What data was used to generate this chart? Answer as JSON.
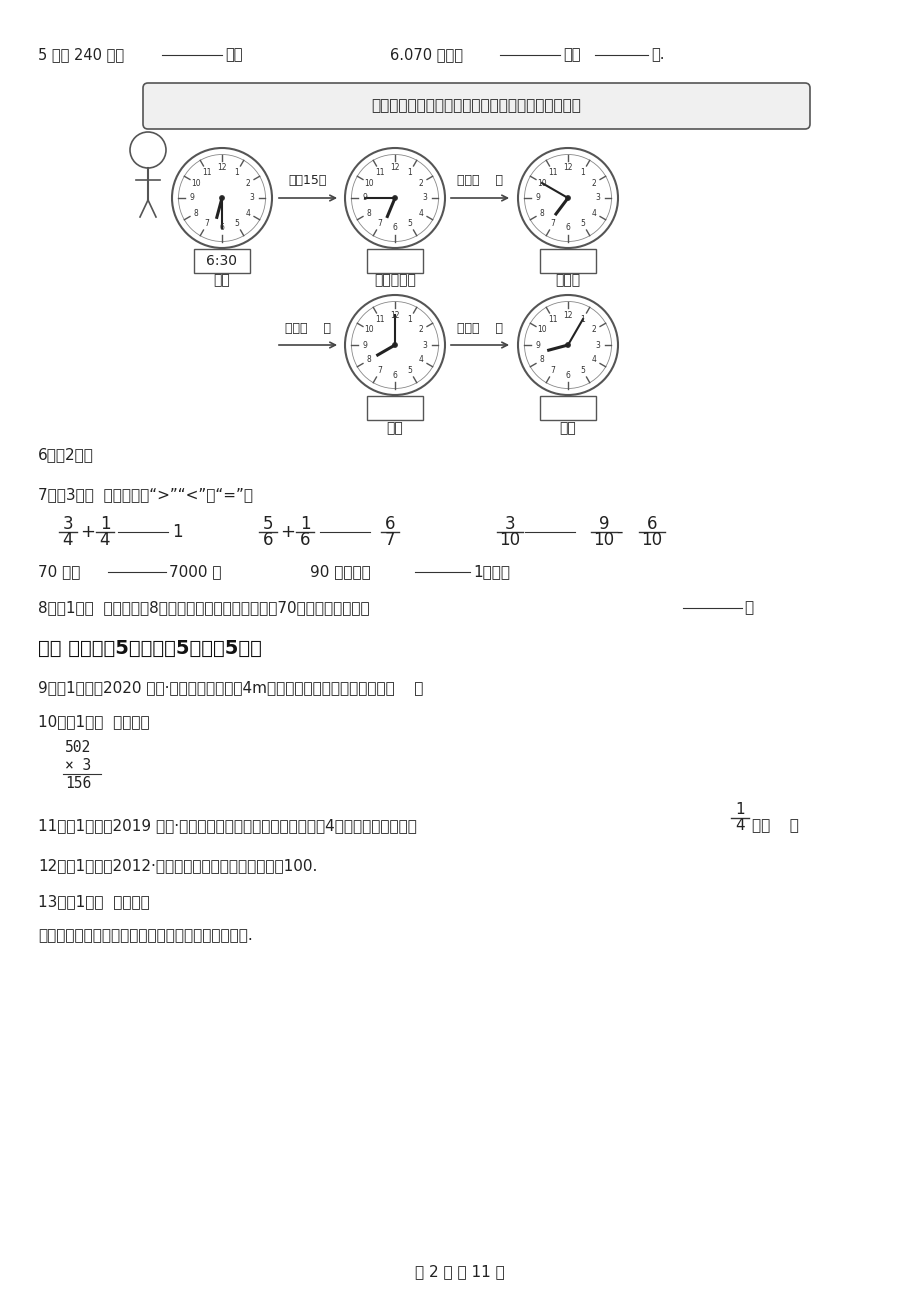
{
  "bg_color": "#ffffff",
  "line1_a": "5 千米 240 米＝",
  "line1_b": "千米",
  "line1b_a": "6.070 千克＝",
  "line1b_b": "千克",
  "line1b_c": "克.",
  "banner_text": "这是我每一天早上，到校之前做的事情，请填一填。",
  "label_qichuang": "起床",
  "label_shuaya": "刷牙、洗脸",
  "label_chizaofan": "吃早饭",
  "label_shangxue": "上学",
  "label_daoxiao": "到校",
  "time_630": "6:30",
  "arrow1_label": "经过15分",
  "arrow2_label": "经过（    ）",
  "arrow3_label": "经过（    ）",
  "arrow4_label": "经过（    ）",
  "q6": "6．（2分）",
  "q7": "7．（3分）  在横线上填“>”“<”或“=”。",
  "frac1_n1": "3",
  "frac1_d1": "4",
  "frac1_n2": "1",
  "frac1_d2": "4",
  "frac1_rhs": "1",
  "frac2_n1": "5",
  "frac2_d1": "6",
  "frac2_n2": "1",
  "frac2_d2": "6",
  "frac2_n3": "6",
  "frac2_d3": "7",
  "frac3_n1": "3",
  "frac3_d1": "10",
  "frac3_n2": "9",
  "frac3_d2": "10",
  "frac3_n3": "6",
  "frac3_d3": "10",
  "plus": "+",
  "minus": "-",
  "weight_a": "70 千克",
  "weight_b": "7000 克",
  "area_a": "90 平方厘米",
  "area_b": "1平方米",
  "q8": "8．（1分）  一个边长为8米的正方形锤板，每平方米重70千克，这块锤板重",
  "q8_end": "。",
  "section2_header": "二、 判断（兲5分）（兲5题；兲5分）",
  "q9": "9．（1分）（2020 五上·曲靖期末）边长为4m的正方形，周长与面积相等。（    ）",
  "q10": "10．（1分）  判断对错",
  "calc_line1": "502",
  "calc_line2": "× 3",
  "calc_line3": "156",
  "q11_pre": "11．（1分）（2019 三上·太谷期末）正方形的周长是它边长的4倍，边长是它周长的",
  "q11_frac_n": "1",
  "q11_frac_d": "4",
  "q11_post": "．（    ）",
  "q12": "12．（1分）（2012·东菞）面积单位之间的进率都是100.",
  "q13": "13．（1分）  判断对错",
  "q13_text": "如果九月三十一日是星期二，那么十月一日是星期三.",
  "page_footer": "第 2 页 共 11 页"
}
